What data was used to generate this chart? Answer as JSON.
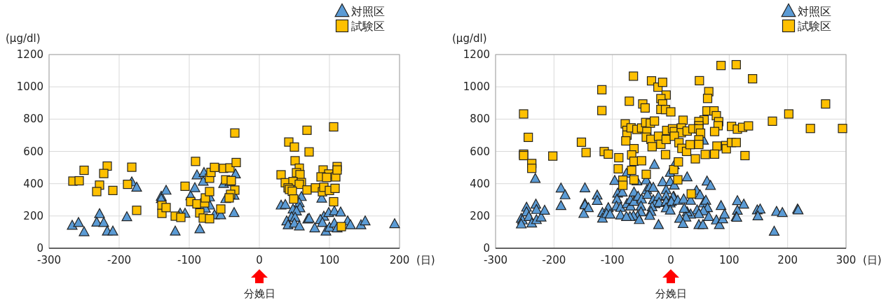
{
  "chart_data": [
    {
      "type": "scatter",
      "ylabel": "(μg/dl)",
      "xlabel": "(日)",
      "xlim": [
        -300,
        200
      ],
      "xticks": [
        -300,
        -200,
        -100,
        0,
        100,
        200
      ],
      "ylim": [
        0,
        1200
      ],
      "yticks": [
        0,
        200,
        400,
        600,
        800,
        1000,
        1200
      ],
      "grid": true,
      "legend": "top right",
      "annotations": [
        "分娩日"
      ],
      "series": [
        {
          "name": "対照区",
          "color": "#5b9bd5",
          "marker": "triangle",
          "x": [
            -267,
            -258,
            -250,
            -228,
            -232,
            -222,
            -217,
            -209,
            -182,
            -175,
            -189,
            -140,
            -140,
            -133,
            -120,
            -113,
            -106,
            -98,
            -92,
            -89,
            -79,
            -80,
            -71,
            -71,
            -77,
            -64,
            -55,
            -85,
            -51,
            -42,
            -34,
            -36,
            -48,
            -36,
            31,
            37,
            60,
            57,
            58,
            48,
            53,
            46,
            51,
            39,
            41,
            50,
            57,
            69,
            71,
            79,
            89,
            92,
            99,
            107,
            116,
            87,
            90,
            95,
            100,
            107,
            111,
            126,
            130,
            145,
            151,
            193
          ],
          "values": [
            141,
            158,
            101,
            213,
            160,
            158,
            105,
            105,
            410,
            377,
            194,
            321,
            306,
            358,
            105,
            216,
            216,
            324,
            374,
            453,
            468,
            414,
            317,
            266,
            247,
            206,
            206,
            119,
            400,
            410,
            459,
            327,
            306,
            220,
            266,
            270,
            319,
            281,
            249,
            242,
            230,
            194,
            191,
            168,
            144,
            154,
            137,
            180,
            184,
            125,
            309,
            197,
            220,
            230,
            223,
            177,
            158,
            105,
            129,
            154,
            125,
            168,
            144,
            144,
            168,
            151
          ]
        },
        {
          "name": "試験区",
          "color": "#ffc000",
          "marker": "square",
          "x": [
            -266,
            -257,
            -250,
            -217,
            -222,
            -228,
            -232,
            -209,
            -182,
            -188,
            -175,
            -139,
            -139,
            -133,
            -120,
            -112,
            -106,
            -91,
            -98,
            -89,
            -78,
            -77,
            -71,
            -71,
            -69,
            -64,
            -85,
            -80,
            -71,
            -55,
            -51,
            -42,
            -33,
            -48,
            -40,
            -35,
            -41,
            -43,
            -35,
            68,
            106,
            42,
            50,
            71,
            51,
            57,
            53,
            58,
            31,
            37,
            48,
            60,
            57,
            41,
            43,
            47,
            49,
            68,
            80,
            90,
            92,
            100,
            108,
            106,
            91,
            99,
            88,
            96,
            109,
            111,
            111,
            117
          ],
          "values": [
            416,
            418,
            483,
            509,
            463,
            391,
            351,
            358,
            502,
            396,
            235,
            266,
            216,
            252,
            199,
            191,
            384,
            538,
            289,
            275,
            281,
            312,
            351,
            434,
            470,
            501,
            219,
            187,
            183,
            243,
            495,
            498,
            531,
            424,
            419,
            360,
            334,
            312,
            714,
            731,
            752,
            658,
            627,
            597,
            542,
            496,
            468,
            456,
            455,
            406,
            413,
            407,
            396,
            374,
            364,
            353,
            305,
            361,
            374,
            350,
            378,
            358,
            371,
            288,
            485,
            460,
            442,
            439,
            442,
            506,
            485,
            134
          ]
        }
      ]
    },
    {
      "type": "scatter",
      "ylabel": "(μg/dl)",
      "xlabel": "(日)",
      "xlim": [
        -300,
        300
      ],
      "xticks": [
        -300,
        -200,
        -100,
        0,
        100,
        200,
        300
      ],
      "ylim": [
        0,
        1200
      ],
      "yticks": [
        0,
        200,
        400,
        600,
        800,
        1000,
        1200
      ],
      "grid": true,
      "legend": "top right",
      "annotations": [
        "分娩日"
      ],
      "series": [
        {
          "name": "対照区",
          "color": "#5b9bd5",
          "marker": "triangle",
          "x": [
            -232,
            -256,
            -254,
            -256,
            -247,
            -247,
            -243,
            -238,
            -231,
            -230,
            -230,
            -222,
            -216,
            -188,
            -181,
            -188,
            -147,
            -147,
            -147,
            -141,
            -149,
            -126,
            -126,
            -117,
            -117,
            -107,
            -110,
            -104,
            -96,
            -91,
            -92,
            -83,
            -93,
            -86,
            -86,
            -76,
            -75,
            -69,
            -69,
            -63,
            -63,
            -56,
            -50,
            -58,
            -51,
            -51,
            -57,
            -64,
            -70,
            -76,
            -54,
            -42,
            -41,
            -40,
            -36,
            -30,
            -28,
            -30,
            -27,
            -32,
            -34,
            -36,
            -21,
            -20,
            -14,
            -8,
            -8,
            -8,
            -1,
            -1,
            -1,
            -21,
            5,
            56,
            6,
            28,
            62,
            68,
            6,
            4,
            1,
            12,
            -8,
            -1,
            22,
            34,
            44,
            50,
            56,
            60,
            63,
            45,
            56,
            48,
            34,
            28,
            23,
            26,
            15,
            21,
            48,
            55,
            65,
            78,
            83,
            86,
            89,
            92,
            114,
            125,
            114,
            112,
            113,
            148,
            153,
            149,
            181,
            191,
            217,
            218,
            177
          ],
          "values": [
            431,
            184,
            174,
            149,
            253,
            224,
            195,
            155,
            272,
            239,
            176,
            192,
            234,
            372,
            330,
            263,
            373,
            275,
            268,
            250,
            214,
            328,
            295,
            220,
            185,
            250,
            214,
            210,
            419,
            340,
            304,
            347,
            260,
            252,
            205,
            463,
            275,
            260,
            301,
            347,
            289,
            321,
            304,
            416,
            260,
            224,
            198,
            200,
            195,
            195,
            176,
            422,
            362,
            333,
            379,
            376,
            518,
            299,
            275,
            256,
            227,
            202,
            321,
            282,
            411,
            362,
            325,
            289,
            279,
            412,
            469,
            145,
            321,
            668,
            516,
            441,
            415,
            388,
            390,
            318,
            289,
            296,
            249,
            235,
            304,
            296,
            357,
            330,
            279,
            296,
            250,
            236,
            231,
            213,
            210,
            224,
            246,
            192,
            184,
            152,
            145,
            145,
            195,
            174,
            145,
            263,
            181,
            210,
            294,
            272,
            234,
            195,
            191,
            236,
            242,
            199,
            227,
            220,
            242,
            236,
            104
          ]
        },
        {
          "name": "試験区",
          "color": "#ffc000",
          "marker": "square",
          "x": [
            -252,
            -244,
            -252,
            -252,
            -238,
            -238,
            -202,
            -118,
            -118,
            -153,
            -145,
            -114,
            -107,
            -89,
            -90,
            -82,
            -82,
            -64,
            -71,
            -48,
            -44,
            -33,
            -22,
            -14,
            -8,
            -17,
            -14,
            -17,
            -9,
            0,
            -78,
            -75,
            -75,
            -77,
            -68,
            -58,
            -50,
            -43,
            -35,
            -28,
            -41,
            -42,
            -34,
            -32,
            -21,
            -17,
            -8,
            -7,
            -9,
            -63,
            -67,
            -63,
            -50,
            -67,
            -42,
            -63,
            5,
            86,
            112,
            140,
            49,
            65,
            63,
            62,
            74,
            78,
            82,
            81,
            57,
            48,
            21,
            48,
            3,
            6,
            18,
            18,
            28,
            38,
            48,
            51,
            75,
            104,
            114,
            123,
            133,
            174,
            202,
            265,
            239,
            294,
            6,
            14,
            19,
            27,
            33,
            48,
            48,
            79,
            94,
            95,
            104,
            112,
            127,
            42,
            59,
            75,
            13,
            12,
            35
          ],
          "values": [
            832,
            687,
            583,
            574,
            525,
            495,
            571,
            982,
            853,
            657,
            593,
            599,
            583,
            561,
            492,
            422,
            390,
            1066,
            911,
            894,
            869,
            1037,
            998,
            1028,
            949,
            927,
            894,
            860,
            859,
            845,
            771,
            730,
            701,
            665,
            746,
            736,
            745,
            779,
            775,
            788,
            723,
            688,
            675,
            629,
            694,
            644,
            674,
            730,
            580,
            617,
            578,
            539,
            542,
            483,
            458,
            424,
            487,
            1132,
            1137,
            1050,
            1038,
            970,
            928,
            851,
            851,
            821,
            784,
            759,
            795,
            785,
            793,
            759,
            740,
            723,
            745,
            716,
            726,
            740,
            740,
            713,
            723,
            755,
            738,
            749,
            758,
            787,
            832,
            894,
            742,
            742,
            694,
            654,
            619,
            600,
            642,
            672,
            643,
            633,
            636,
            616,
            655,
            655,
            574,
            554,
            581,
            583,
            535,
            424,
            337
          ]
        }
      ]
    }
  ]
}
